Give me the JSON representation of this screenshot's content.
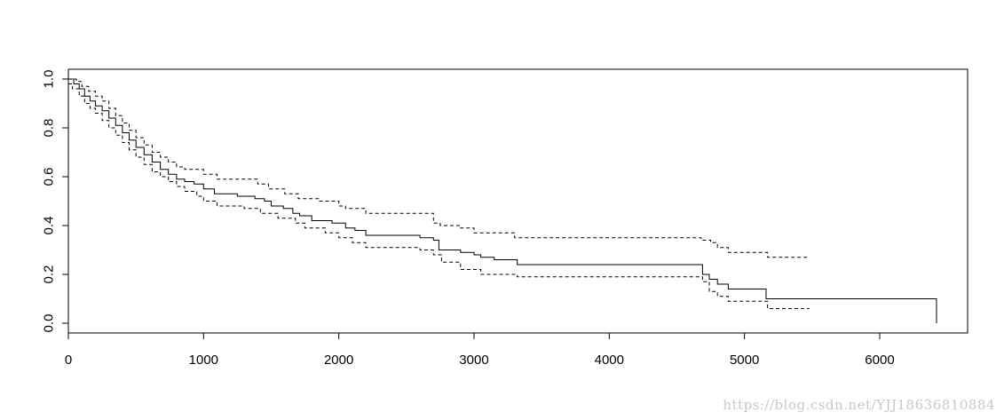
{
  "chart_data": {
    "type": "line",
    "title": "",
    "xlabel": "",
    "ylabel": "",
    "xlim": [
      0,
      6650
    ],
    "ylim": [
      -0.04,
      1.04
    ],
    "x_ticks": [
      0,
      1000,
      2000,
      3000,
      4000,
      5000,
      6000
    ],
    "y_ticks": [
      0.0,
      0.2,
      0.4,
      0.6,
      0.8,
      1.0
    ],
    "x_tick_labels": [
      "0",
      "1000",
      "2000",
      "3000",
      "4000",
      "5000",
      "6000"
    ],
    "y_tick_labels": [
      "0.0",
      "0.2",
      "0.4",
      "0.6",
      "0.8",
      "1.0"
    ],
    "grid": false,
    "legend": "none",
    "step": true,
    "series": [
      {
        "style": "solid",
        "x": [
          0,
          40,
          80,
          120,
          160,
          200,
          250,
          300,
          350,
          400,
          450,
          500,
          560,
          620,
          680,
          740,
          800,
          860,
          930,
          1000,
          1080,
          1250,
          1380,
          1450,
          1500,
          1590,
          1660,
          1710,
          1800,
          1950,
          2050,
          2120,
          2200,
          2580,
          2600,
          2700,
          2740,
          2900,
          3000,
          3050,
          3150,
          3320,
          4690,
          4740,
          4800,
          4880,
          5160,
          6400,
          6420
        ],
        "y": [
          1.0,
          0.98,
          0.96,
          0.93,
          0.91,
          0.89,
          0.87,
          0.84,
          0.81,
          0.78,
          0.75,
          0.72,
          0.69,
          0.66,
          0.63,
          0.61,
          0.59,
          0.58,
          0.57,
          0.55,
          0.53,
          0.52,
          0.51,
          0.5,
          0.48,
          0.47,
          0.45,
          0.44,
          0.42,
          0.41,
          0.39,
          0.38,
          0.36,
          0.36,
          0.35,
          0.34,
          0.3,
          0.29,
          0.28,
          0.27,
          0.26,
          0.24,
          0.2,
          0.18,
          0.16,
          0.14,
          0.1,
          0.1,
          0.0
        ]
      },
      {
        "style": "dashed",
        "x": [
          0,
          60,
          100,
          150,
          200,
          250,
          300,
          350,
          400,
          450,
          500,
          560,
          620,
          680,
          740,
          800,
          860,
          1000,
          1100,
          1400,
          1480,
          1600,
          1700,
          1850,
          2000,
          2050,
          2200,
          2700,
          2750,
          2900,
          3000,
          3300,
          4680,
          4750,
          4800,
          4880,
          5170,
          5480
        ],
        "y": [
          1.0,
          0.99,
          0.97,
          0.95,
          0.93,
          0.91,
          0.88,
          0.85,
          0.82,
          0.79,
          0.76,
          0.73,
          0.7,
          0.68,
          0.66,
          0.64,
          0.63,
          0.61,
          0.59,
          0.57,
          0.55,
          0.53,
          0.51,
          0.5,
          0.48,
          0.47,
          0.45,
          0.41,
          0.4,
          0.39,
          0.37,
          0.35,
          0.34,
          0.33,
          0.31,
          0.29,
          0.27,
          0.27
        ]
      },
      {
        "style": "dashed",
        "x": [
          0,
          30,
          80,
          120,
          160,
          200,
          250,
          300,
          350,
          400,
          450,
          500,
          560,
          620,
          680,
          740,
          800,
          860,
          950,
          1000,
          1100,
          1300,
          1420,
          1550,
          1680,
          1750,
          1900,
          2000,
          2100,
          2200,
          2600,
          2700,
          2760,
          2900,
          3050,
          3320,
          4690,
          4740,
          4800,
          4880,
          5170,
          5480
        ],
        "y": [
          0.98,
          0.96,
          0.93,
          0.9,
          0.88,
          0.86,
          0.83,
          0.8,
          0.77,
          0.74,
          0.71,
          0.68,
          0.65,
          0.62,
          0.6,
          0.58,
          0.56,
          0.54,
          0.52,
          0.5,
          0.48,
          0.47,
          0.45,
          0.43,
          0.41,
          0.39,
          0.37,
          0.35,
          0.33,
          0.31,
          0.3,
          0.28,
          0.25,
          0.22,
          0.2,
          0.19,
          0.17,
          0.13,
          0.11,
          0.09,
          0.06,
          0.06
        ]
      }
    ]
  },
  "watermark": "https://blog.csdn.net/YJJ18636810884"
}
